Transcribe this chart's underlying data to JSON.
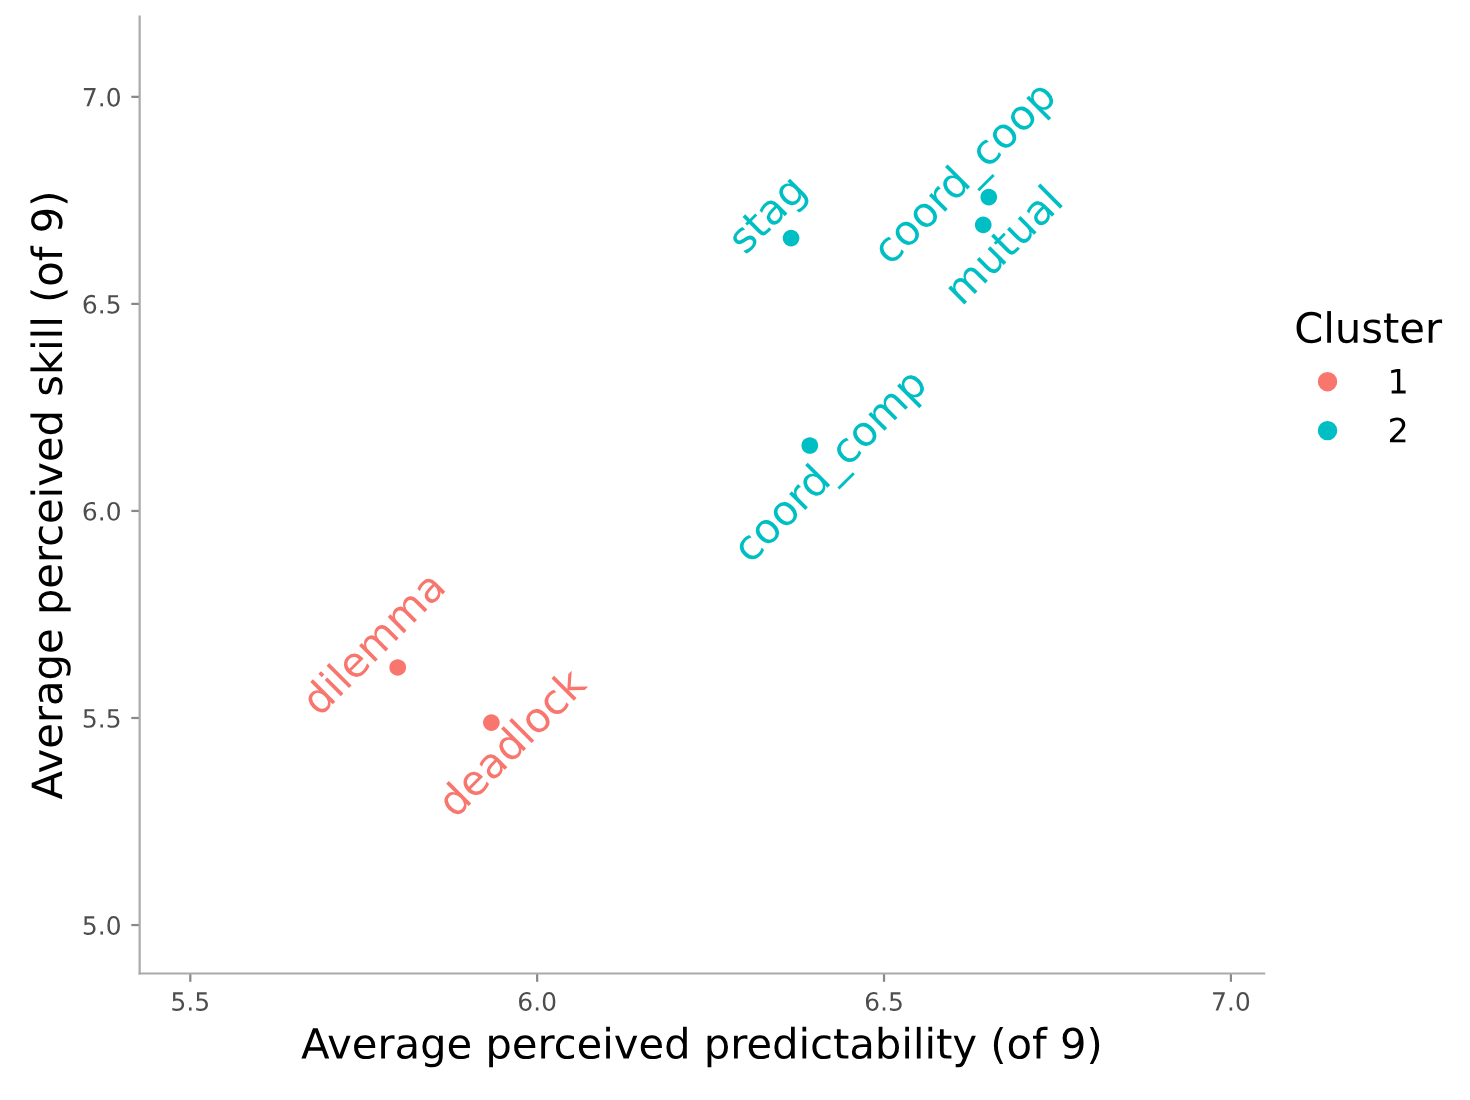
{
  "chart_data": {
    "type": "scatter",
    "xlabel": "Average perceived predictability (of 9)",
    "ylabel": "Average perceived skill (of 9)",
    "legend_title": "Cluster",
    "legend": "right",
    "grid": false,
    "marker": "circle",
    "xlim": [
      5.427,
      7.048
    ],
    "ylim": [
      4.883,
      7.194
    ],
    "xticks": [
      {
        "value": 5.5,
        "label": "5.5"
      },
      {
        "value": 6.0,
        "label": "6.0"
      },
      {
        "value": 6.5,
        "label": "6.5"
      },
      {
        "value": 7.0,
        "label": "7.0"
      }
    ],
    "yticks": [
      {
        "value": 5.0,
        "label": "5.0"
      },
      {
        "value": 5.5,
        "label": "5.5"
      },
      {
        "value": 6.0,
        "label": "6.0"
      },
      {
        "value": 6.5,
        "label": "6.5"
      },
      {
        "value": 7.0,
        "label": "7.0"
      }
    ],
    "series": [
      {
        "name": "1",
        "color": "#f8766d",
        "x": [
          5.799,
          5.934
        ],
        "values": [
          5.622,
          5.489
        ],
        "value_labels": [
          "dilemma",
          "deadlock"
        ]
      },
      {
        "name": "2",
        "color": "#00bfc4",
        "x": [
          6.366,
          6.393,
          6.651,
          6.643
        ],
        "values": [
          6.659,
          6.158,
          6.758,
          6.691
        ],
        "value_labels": [
          "stag",
          "coord_comp",
          "coord_coop",
          "mutual"
        ]
      }
    ]
  }
}
